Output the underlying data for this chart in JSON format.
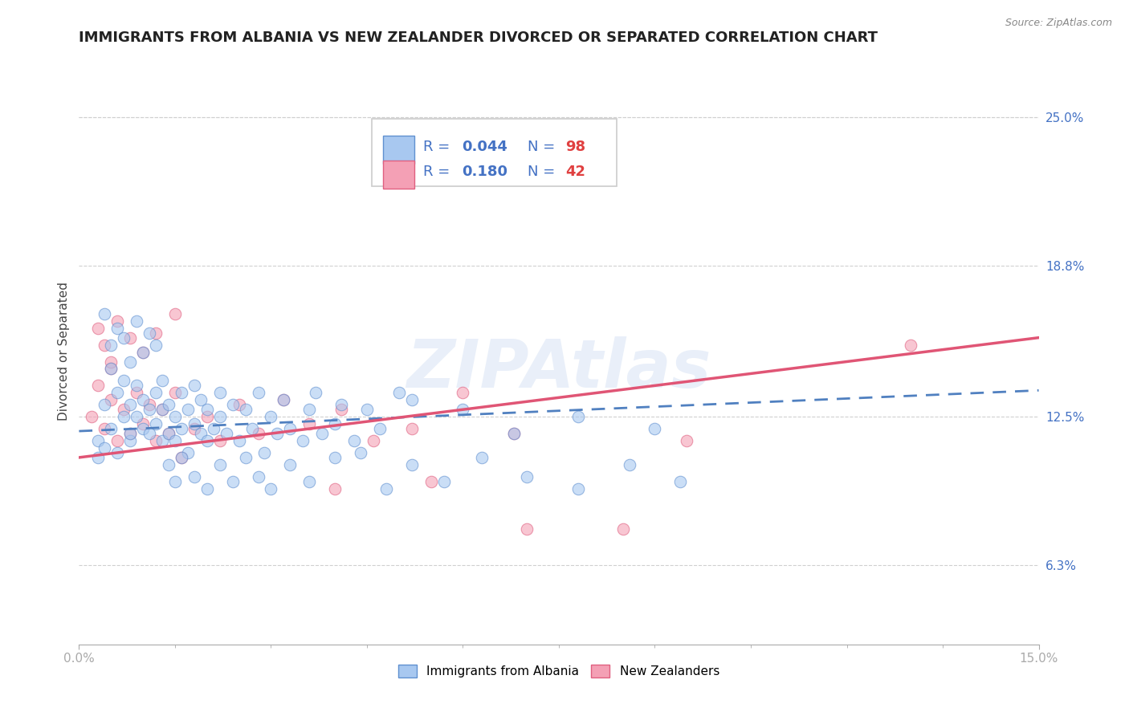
{
  "title": "IMMIGRANTS FROM ALBANIA VS NEW ZEALANDER DIVORCED OR SEPARATED CORRELATION CHART",
  "source_text": "Source: ZipAtlas.com",
  "ylabel": "Divorced or Separated",
  "xlim": [
    0.0,
    0.15
  ],
  "ylim": [
    0.03,
    0.275
  ],
  "yticks": [
    0.063,
    0.125,
    0.188,
    0.25
  ],
  "ytick_labels": [
    "6.3%",
    "12.5%",
    "18.8%",
    "25.0%"
  ],
  "xtick_labels_show": [
    "0.0%",
    "15.0%"
  ],
  "xtick_positions_show": [
    0.0,
    0.15
  ],
  "watermark": "ZIPAtlas",
  "blue_color": "#A8C8F0",
  "pink_color": "#F4A0B5",
  "blue_edge_color": "#6090D0",
  "pink_edge_color": "#E06080",
  "blue_line_color": "#5080C0",
  "pink_line_color": "#E05575",
  "legend_blue_r": "0.044",
  "legend_blue_n": "98",
  "legend_pink_r": "0.180",
  "legend_pink_n": "42",
  "bottom_legend_blue": "Immigrants from Albania",
  "bottom_legend_pink": "New Zealanders",
  "blue_n": 98,
  "pink_n": 42,
  "title_fontsize": 13,
  "axis_label_fontsize": 11,
  "tick_fontsize": 11,
  "dot_size": 110,
  "dot_alpha": 0.6,
  "blue_x_data": [
    0.003,
    0.004,
    0.005,
    0.005,
    0.006,
    0.006,
    0.007,
    0.007,
    0.008,
    0.008,
    0.008,
    0.009,
    0.009,
    0.01,
    0.01,
    0.011,
    0.011,
    0.012,
    0.012,
    0.013,
    0.013,
    0.013,
    0.014,
    0.014,
    0.015,
    0.015,
    0.016,
    0.016,
    0.017,
    0.017,
    0.018,
    0.018,
    0.019,
    0.019,
    0.02,
    0.02,
    0.021,
    0.022,
    0.022,
    0.023,
    0.024,
    0.025,
    0.026,
    0.027,
    0.028,
    0.029,
    0.03,
    0.031,
    0.032,
    0.033,
    0.035,
    0.036,
    0.037,
    0.038,
    0.04,
    0.041,
    0.043,
    0.045,
    0.047,
    0.05,
    0.004,
    0.005,
    0.006,
    0.007,
    0.008,
    0.009,
    0.01,
    0.011,
    0.012,
    0.014,
    0.015,
    0.016,
    0.018,
    0.02,
    0.022,
    0.024,
    0.026,
    0.028,
    0.03,
    0.033,
    0.036,
    0.04,
    0.044,
    0.048,
    0.052,
    0.057,
    0.063,
    0.07,
    0.078,
    0.086,
    0.094,
    0.052,
    0.06,
    0.068,
    0.078,
    0.09,
    0.003,
    0.004
  ],
  "blue_y_data": [
    0.115,
    0.13,
    0.12,
    0.145,
    0.11,
    0.135,
    0.125,
    0.14,
    0.115,
    0.13,
    0.118,
    0.125,
    0.138,
    0.12,
    0.132,
    0.128,
    0.118,
    0.122,
    0.135,
    0.115,
    0.128,
    0.14,
    0.118,
    0.13,
    0.115,
    0.125,
    0.12,
    0.135,
    0.11,
    0.128,
    0.122,
    0.138,
    0.118,
    0.132,
    0.115,
    0.128,
    0.12,
    0.125,
    0.135,
    0.118,
    0.13,
    0.115,
    0.128,
    0.12,
    0.135,
    0.11,
    0.125,
    0.118,
    0.132,
    0.12,
    0.115,
    0.128,
    0.135,
    0.118,
    0.122,
    0.13,
    0.115,
    0.128,
    0.12,
    0.135,
    0.168,
    0.155,
    0.162,
    0.158,
    0.148,
    0.165,
    0.152,
    0.16,
    0.155,
    0.105,
    0.098,
    0.108,
    0.1,
    0.095,
    0.105,
    0.098,
    0.108,
    0.1,
    0.095,
    0.105,
    0.098,
    0.108,
    0.11,
    0.095,
    0.105,
    0.098,
    0.108,
    0.1,
    0.095,
    0.105,
    0.098,
    0.132,
    0.128,
    0.118,
    0.125,
    0.12,
    0.108,
    0.112
  ],
  "pink_x_data": [
    0.002,
    0.003,
    0.004,
    0.005,
    0.005,
    0.006,
    0.007,
    0.008,
    0.009,
    0.01,
    0.011,
    0.012,
    0.013,
    0.014,
    0.015,
    0.016,
    0.018,
    0.02,
    0.022,
    0.025,
    0.028,
    0.032,
    0.036,
    0.041,
    0.046,
    0.052,
    0.06,
    0.068,
    0.04,
    0.055,
    0.07,
    0.085,
    0.003,
    0.004,
    0.005,
    0.006,
    0.008,
    0.01,
    0.012,
    0.015,
    0.095,
    0.13
  ],
  "pink_y_data": [
    0.125,
    0.138,
    0.12,
    0.132,
    0.145,
    0.115,
    0.128,
    0.118,
    0.135,
    0.122,
    0.13,
    0.115,
    0.128,
    0.118,
    0.135,
    0.108,
    0.12,
    0.125,
    0.115,
    0.13,
    0.118,
    0.132,
    0.122,
    0.128,
    0.115,
    0.12,
    0.135,
    0.118,
    0.095,
    0.098,
    0.078,
    0.078,
    0.162,
    0.155,
    0.148,
    0.165,
    0.158,
    0.152,
    0.16,
    0.168,
    0.115,
    0.155
  ],
  "blue_trend_x": [
    0.0,
    0.15
  ],
  "blue_trend_y": [
    0.119,
    0.136
  ],
  "pink_trend_x": [
    0.0,
    0.15
  ],
  "pink_trend_y": [
    0.108,
    0.158
  ]
}
